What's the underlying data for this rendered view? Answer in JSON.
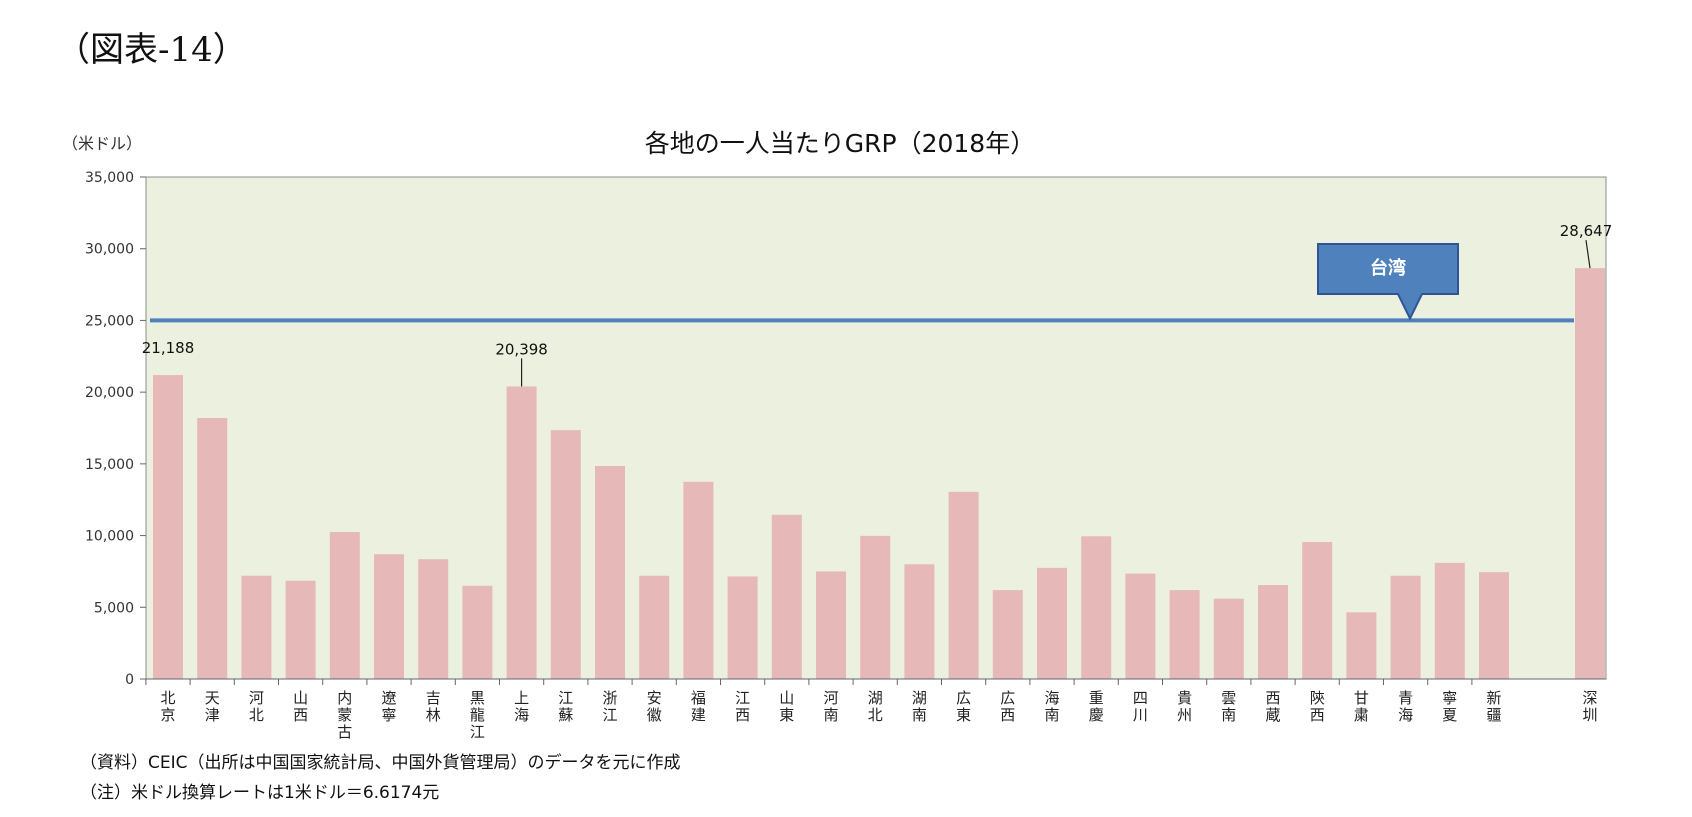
{
  "figure_label": "（図表-14）",
  "unit_label": "（米ドル）",
  "notes": {
    "source": "（資料）CEIC（出所は中国国家統計局、中国外貨管理局）のデータを元に作成",
    "note": "（注）米ドル換算レートは1米ドル＝6.6174元"
  },
  "chart_data": {
    "type": "bar",
    "title": "各地の一人当たりGRP（2018年）",
    "ylabel": "（米ドル）",
    "xlabel": "",
    "ylim": [
      0,
      35000
    ],
    "yticks": [
      0,
      5000,
      10000,
      15000,
      20000,
      25000,
      30000,
      35000
    ],
    "ytick_labels": [
      "0",
      "5,000",
      "10,000",
      "15,000",
      "20,000",
      "25,000",
      "30,000",
      "35,000"
    ],
    "categories": [
      "北京",
      "天津",
      "河北",
      "山西",
      "内蒙古",
      "遼寧",
      "吉林",
      "黒龍江",
      "上海",
      "江蘇",
      "浙江",
      "安徽",
      "福建",
      "江西",
      "山東",
      "河南",
      "湖北",
      "湖南",
      "広東",
      "広西",
      "海南",
      "重慶",
      "四川",
      "貴州",
      "雲南",
      "西蔵",
      "陝西",
      "甘粛",
      "青海",
      "寧夏",
      "新疆",
      "深圳"
    ],
    "values": [
      21188,
      18200,
      7200,
      6850,
      10250,
      8700,
      8350,
      6500,
      20398,
      17350,
      14850,
      7200,
      13750,
      7150,
      11450,
      7500,
      9980,
      8000,
      13050,
      6200,
      7750,
      9950,
      7350,
      6200,
      5600,
      6550,
      9550,
      4650,
      7200,
      8100,
      7450,
      28647
    ],
    "data_labels": [
      {
        "category": "北京",
        "text": "21,188"
      },
      {
        "category": "上海",
        "text": "20,398"
      },
      {
        "category": "深圳",
        "text": "28,647"
      }
    ],
    "reference_line": {
      "label": "台湾",
      "value": 25000
    },
    "colors": {
      "bar": "#e6b9b8",
      "plot_background": "#ebf1de",
      "reference_line": "#4f81bd",
      "callout_fill": "#4f81bd",
      "callout_border": "#2f5597",
      "callout_text": "#ffffff"
    },
    "grid": false,
    "legend": "none"
  }
}
